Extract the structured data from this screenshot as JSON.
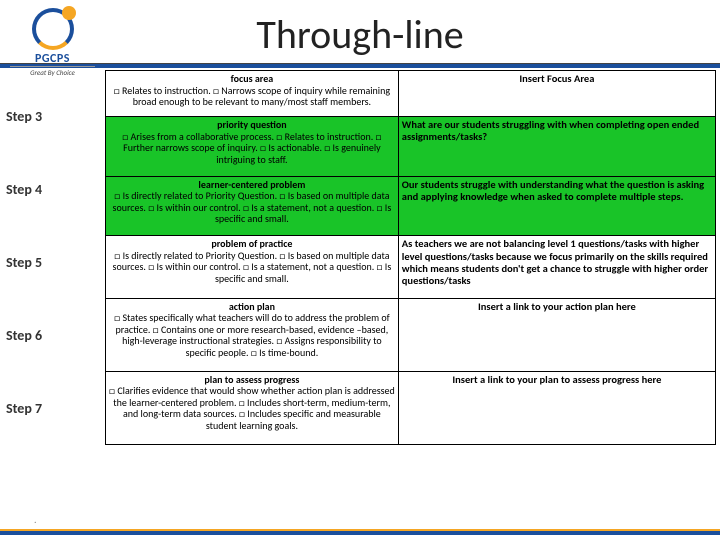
{
  "logo": {
    "main": "PGCPS",
    "sub": "Great By Choice"
  },
  "title": "Through-line",
  "steps": [
    "Step 3",
    "Step 4",
    "Step 5",
    "Step 6",
    "Step 7"
  ],
  "rows": [
    {
      "left_title": "focus area",
      "left_body": "Relates to instruction. □ Narrows scope of inquiry while remaining broad enough to be relevant to many/most staff members.",
      "right": "Insert Focus Area",
      "left_green": false,
      "right_head": true
    },
    {
      "left_title": "priority question",
      "left_body": "Arises from a collaborative process. □ Relates to instruction. □ Further narrows scope of inquiry. □ Is actionable. □ Is genuinely intriguing to staff.",
      "right": "What are our students struggling with when completing open ended  assignments/tasks?",
      "left_green": true
    },
    {
      "left_title": "learner-centered problem",
      "left_body": "Is directly related to Priority Question. □ Is based on multiple data sources. □ Is within our control. □ Is a statement, not a question. □ Is specific and small.",
      "right": "Our students struggle with understanding what the question is asking and applying knowledge when asked to complete multiple steps.",
      "left_green": true
    },
    {
      "left_title": "problem of practice",
      "left_body": "Is directly related to Priority Question. □ Is based on multiple data sources. □ Is within our control. □ Is a statement, not a question. □ Is specific and small.",
      "right": "As teachers we are not balancing level 1 questions/tasks with higher level questions/tasks because we focus primarily on the skills required which means students don't get a chance to struggle with higher order questions/tasks",
      "left_green": false
    },
    {
      "left_title": "action plan",
      "left_body": "States specifically what teachers will do to address the problem of practice. □ Contains one or more research-based, evidence –based, high-leverage instructional strategies. □ Assigns responsibility to specific people. □  Is time-bound.",
      "right": "Insert a link to  your action plan here",
      "left_green": false,
      "right_head": true
    },
    {
      "left_title": "plan to assess progress",
      "left_body": "Clarifies evidence that would show whether action plan is addressed the learner-centered problem. □ Includes short-term, medium-term, and long-term data sources. □ Includes specific and measurable student learning goals.",
      "right": "Insert  a link to your plan to assess progress here",
      "left_green": false,
      "right_head": true
    }
  ]
}
